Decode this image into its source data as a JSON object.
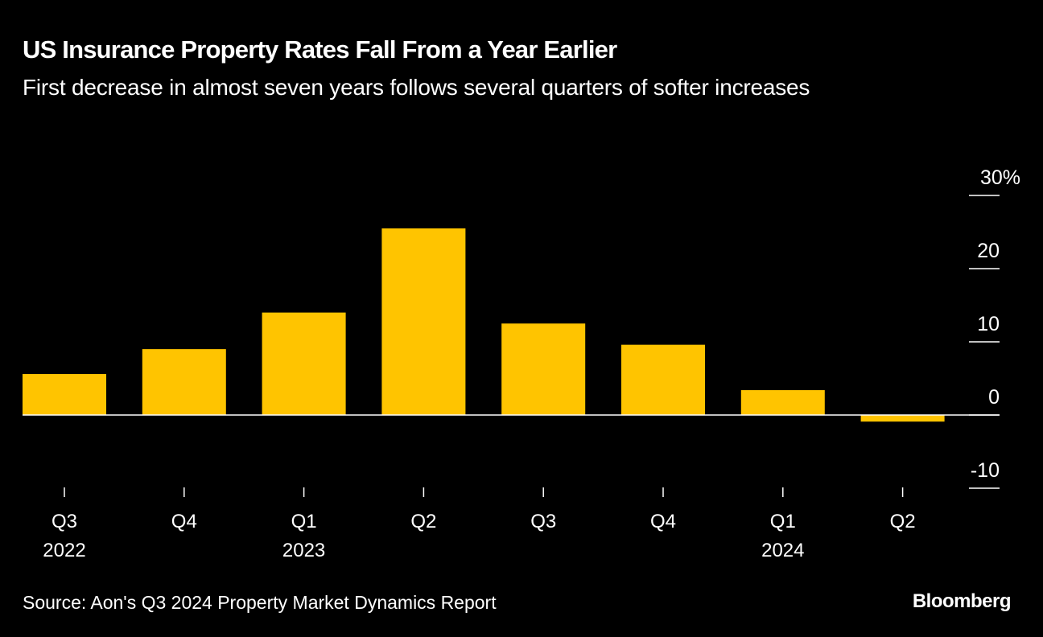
{
  "chart_data": {
    "type": "bar",
    "title": "US Insurance Property Rates Fall From a Year Earlier",
    "subtitle": "First decrease in almost seven years follows several quarters of softer increases",
    "categories": [
      "Q3 2022",
      "Q4 2022",
      "Q1 2023",
      "Q2 2023",
      "Q3 2023",
      "Q4 2023",
      "Q1 2024",
      "Q2 2024"
    ],
    "x_tick_labels": [
      {
        "quarter": "Q3",
        "year": "2022"
      },
      {
        "quarter": "Q4",
        "year": ""
      },
      {
        "quarter": "Q1",
        "year": "2023"
      },
      {
        "quarter": "Q2",
        "year": ""
      },
      {
        "quarter": "Q3",
        "year": ""
      },
      {
        "quarter": "Q4",
        "year": ""
      },
      {
        "quarter": "Q1",
        "year": "2024"
      },
      {
        "quarter": "Q2",
        "year": ""
      }
    ],
    "values": [
      5.6,
      9.0,
      14.0,
      25.5,
      12.5,
      9.6,
      3.4,
      -0.9
    ],
    "ylim": [
      -10,
      30
    ],
    "yticks": [
      30,
      20,
      10,
      0,
      -10
    ],
    "ytick_labels": [
      "30%",
      "20",
      "10",
      "0",
      "-10"
    ],
    "xlabel": "",
    "ylabel": "",
    "grid": false,
    "bar_color": "#FFC400",
    "axis_side": "right"
  },
  "footer": {
    "source": "Source: Aon's Q3 2024 Property Market Dynamics Report",
    "brand": "Bloomberg"
  }
}
